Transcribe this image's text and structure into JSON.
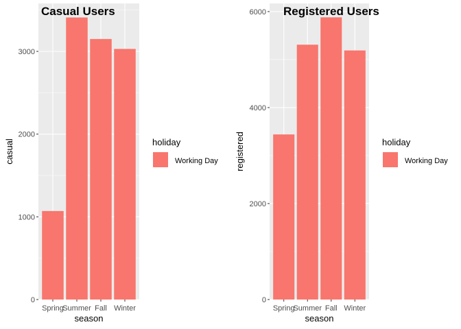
{
  "chart_data": [
    {
      "type": "bar",
      "title": "Casual Users",
      "xlabel": "season",
      "ylabel": "casual",
      "categories": [
        "Spring",
        "Summer",
        "Fall",
        "Winter"
      ],
      "series": [
        {
          "name": "Working Day",
          "values": [
            1070,
            3410,
            3150,
            3030
          ]
        }
      ],
      "ylim": [
        0,
        3580
      ],
      "yticks": [
        0,
        1000,
        2000,
        3000
      ],
      "grid": true,
      "legend": {
        "title": "holiday",
        "position": "right",
        "entries": [
          "Working Day"
        ]
      },
      "bar_color": "#F8766D",
      "panel_color": "#EBEBEB"
    },
    {
      "type": "bar",
      "title": "Registered Users",
      "xlabel": "season",
      "ylabel": "registered",
      "categories": [
        "Spring",
        "Summer",
        "Fall",
        "Winter"
      ],
      "series": [
        {
          "name": "Working Day",
          "values": [
            3440,
            5310,
            5880,
            5190
          ]
        }
      ],
      "ylim": [
        0,
        6170
      ],
      "yticks": [
        0,
        2000,
        4000,
        6000
      ],
      "grid": true,
      "legend": {
        "title": "holiday",
        "position": "right",
        "entries": [
          "Working Day"
        ]
      },
      "bar_color": "#F8766D",
      "panel_color": "#EBEBEB"
    }
  ]
}
